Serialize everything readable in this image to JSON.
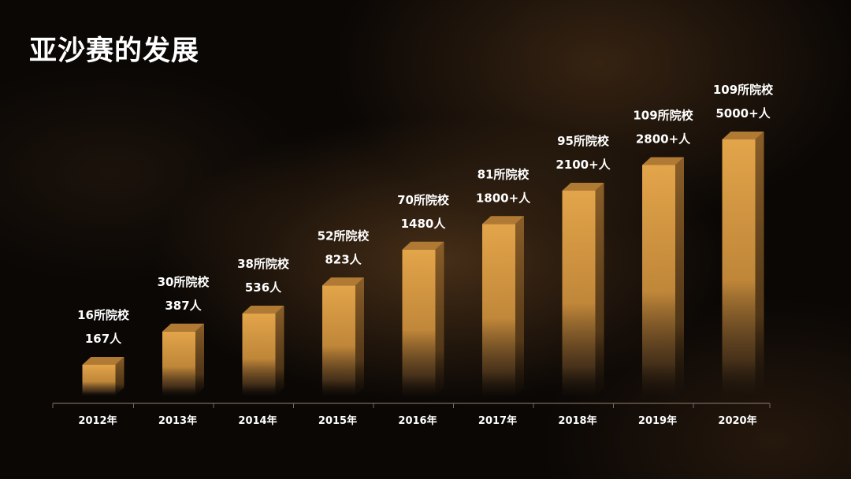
{
  "title": "亚沙赛的发展",
  "chart_data": {
    "type": "bar",
    "title": "亚沙赛的发展",
    "xlabel": "",
    "ylabel": "",
    "categories": [
      "2012年",
      "2013年",
      "2014年",
      "2015年",
      "2016年",
      "2017年",
      "2018年",
      "2019年",
      "2020年"
    ],
    "series": [
      {
        "values": [
          16,
          30,
          38,
          52,
          70,
          81,
          95,
          109,
          109
        ]
      },
      {
        "values": [
          167,
          387,
          536,
          823,
          1480,
          1800,
          2100,
          2800,
          5000
        ]
      }
    ],
    "bar_heights_relative": [
      0.12,
      0.25,
      0.32,
      0.43,
      0.57,
      0.67,
      0.8,
      0.9,
      1.0
    ],
    "labels": [
      [
        "16所院校",
        "167人"
      ],
      [
        "30所院校",
        "387人"
      ],
      [
        "38所院校",
        "536人"
      ],
      [
        "52所院校",
        "823人"
      ],
      [
        "70所院校",
        "1480人"
      ],
      [
        "81所院校",
        "1800+人"
      ],
      [
        "95所院校",
        "2100+人"
      ],
      [
        "109所院校",
        "2800+人"
      ],
      [
        "109所院校",
        "5000+人"
      ]
    ],
    "grid": false,
    "legend": "none",
    "colors": {
      "bar_top": "#e3a54a",
      "bar_mid": "#c98d3c",
      "bar_face_dark": "#1a120b",
      "bar_side": "#8a5e28",
      "bar_cap": "#b07a35",
      "axis": "#7a6a5a",
      "text": "#ffffff"
    }
  }
}
